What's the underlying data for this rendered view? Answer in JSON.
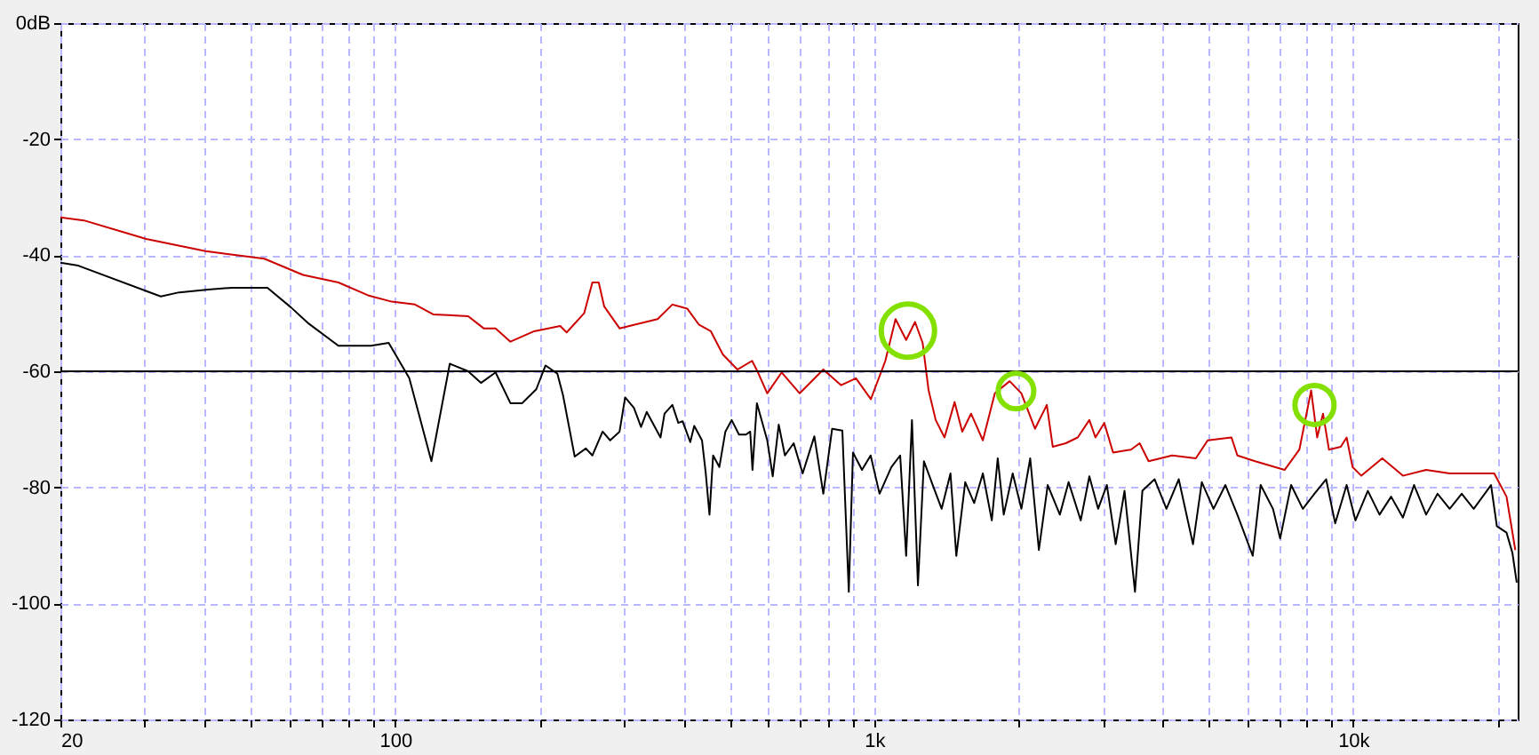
{
  "chart_data": {
    "type": "line",
    "log": "x",
    "grid": true,
    "line_style": "solid",
    "xlim": [
      20,
      22050
    ],
    "ylim": [
      -120,
      0
    ],
    "xticks": [
      20,
      {
        "value": 30,
        "label": null
      },
      {
        "value": 40,
        "label": null
      },
      {
        "value": 50,
        "label": null
      },
      {
        "value": 60,
        "label": null
      },
      {
        "value": 70,
        "label": null
      },
      {
        "value": 80,
        "label": null
      },
      {
        "value": 90,
        "label": null
      },
      100,
      {
        "value": 200,
        "label": null
      },
      {
        "value": 300,
        "label": null
      },
      {
        "value": 400,
        "label": null
      },
      {
        "value": 500,
        "label": null
      },
      {
        "value": 600,
        "label": null
      },
      {
        "value": 700,
        "label": null
      },
      {
        "value": 800,
        "label": null
      },
      {
        "value": 900,
        "label": null
      },
      {
        "value": 1000,
        "label": "1k"
      },
      {
        "value": 2000,
        "label": null
      },
      {
        "value": 3000,
        "label": null
      },
      {
        "value": 4000,
        "label": null
      },
      {
        "value": 5000,
        "label": null
      },
      {
        "value": 6000,
        "label": null
      },
      {
        "value": 7000,
        "label": null
      },
      {
        "value": 8000,
        "label": null
      },
      {
        "value": 9000,
        "label": null
      },
      {
        "value": 10000,
        "label": "10k"
      },
      {
        "value": 20000,
        "label": null
      }
    ],
    "yticks": [
      {
        "value": 0,
        "label": "0dB"
      },
      -20,
      -40,
      -60,
      -80,
      -100,
      -120
    ],
    "ref_lines": [
      {
        "axis": "y",
        "value": -60,
        "color": "#000000"
      }
    ],
    "series": [
      {
        "color": "#cc0000",
        "x": [
          20,
          22.4,
          30.2,
          40.2,
          53.3,
          64.2,
          76.1,
          87.7,
          98.3,
          110,
          120,
          142,
          153,
          162,
          174,
          195,
          221,
          228,
          248,
          258,
          266,
          273,
          294,
          315,
          353,
          379,
          407,
          431,
          456,
          483,
          518,
          556,
          572,
          598,
          641,
          699,
          783,
          853,
          916,
          984,
          1055,
          1108,
          1166,
          1217,
          1262,
          1299,
          1344,
          1402,
          1472,
          1527,
          1593,
          1686,
          1786,
          1918,
          2029,
          2166,
          2293,
          2359,
          2512,
          2660,
          2813,
          2897,
          3022,
          3153,
          3436,
          3583,
          3740,
          4190,
          4693,
          4969,
          5571,
          5730,
          6240,
          7190,
          7720,
          8170,
          8410,
          8650,
          8900,
          9420,
          9690,
          9970,
          10400,
          11500,
          12700,
          14200,
          15900,
          17900,
          19700,
          20900,
          21800
        ],
        "values": [
          -33.5,
          -34,
          -37.2,
          -39.3,
          -40.6,
          -43.4,
          -44.7,
          -46.9,
          -48,
          -48.5,
          -50.2,
          -50.5,
          -52.6,
          -52.6,
          -54.9,
          -53.1,
          -52.2,
          -53.3,
          -50,
          -44.7,
          -44.7,
          -48.8,
          -52.6,
          -52,
          -51,
          -48.5,
          -49.2,
          -52,
          -53.1,
          -57.1,
          -59.7,
          -58.2,
          -60.2,
          -63.8,
          -60.2,
          -63.8,
          -59.7,
          -62.4,
          -61.2,
          -64.8,
          -58.2,
          -51,
          -54.6,
          -51.5,
          -55.1,
          -63.3,
          -68.4,
          -71.4,
          -65.3,
          -70.4,
          -67.3,
          -71.9,
          -63.8,
          -61.7,
          -63.8,
          -69.9,
          -65.8,
          -73,
          -72.4,
          -71.4,
          -68.4,
          -71.4,
          -68.9,
          -74,
          -73.5,
          -72.4,
          -75.5,
          -74.5,
          -75,
          -71.9,
          -71.4,
          -74.5,
          -75.5,
          -77,
          -73.5,
          -63.3,
          -71.4,
          -67.3,
          -73.5,
          -73,
          -71.4,
          -76.5,
          -78,
          -75,
          -78,
          -77,
          -77.6,
          -77.6,
          -77.6,
          -81.6,
          -90.8
        ]
      },
      {
        "color": "#000000",
        "x": [
          20,
          21.8,
          32.4,
          35.4,
          40.7,
          45.6,
          54.1,
          60.6,
          66,
          76.1,
          89,
          96.9,
          107,
          119,
          130,
          142,
          151,
          162,
          174,
          184,
          197,
          206,
          218,
          224,
          237,
          250,
          258,
          271,
          281,
          294,
          302,
          315,
          326,
          335,
          358,
          365,
          379,
          390,
          398,
          413,
          421,
          437,
          445,
          453,
          461,
          475,
          489,
          504,
          522,
          540,
          551,
          557,
          569,
          598,
          614,
          632,
          651,
          679,
          709,
          750,
          783,
          817,
          858,
          885,
          903,
          943,
          983,
          1026,
          1086,
          1133,
          1166,
          1199,
          1234,
          1270,
          1325,
          1383,
          1443,
          1484,
          1549,
          1617,
          1686,
          1760,
          1811,
          1864,
          1946,
          2029,
          2117,
          2207,
          2303,
          2441,
          2546,
          2699,
          2813,
          2934,
          3060,
          3193,
          3331,
          3503,
          3630,
          3850,
          4075,
          4323,
          4630,
          4830,
          5110,
          5410,
          5730,
          6170,
          6410,
          6800,
          7040,
          7420,
          7850,
          8300,
          8780,
          9170,
          9690,
          10110,
          10730,
          11350,
          12000,
          12700,
          13400,
          14200,
          15000,
          15900,
          16850,
          17850,
          19400,
          19950,
          20900,
          21500,
          21950
        ],
        "values": [
          -41.3,
          -41.8,
          -47.1,
          -46.4,
          -45.9,
          -45.6,
          -45.6,
          -49,
          -51.8,
          -55.6,
          -55.6,
          -55.1,
          -61.2,
          -75.5,
          -58.7,
          -60,
          -62,
          -60.2,
          -65.5,
          -65.5,
          -63.1,
          -59,
          -60.4,
          -64.1,
          -74.7,
          -73.3,
          -74.5,
          -70.4,
          -71.9,
          -70.4,
          -64.5,
          -66.3,
          -69.6,
          -67,
          -71.4,
          -67.3,
          -65.8,
          -68.9,
          -68.6,
          -72.2,
          -69.4,
          -71.9,
          -77.6,
          -84.7,
          -74.5,
          -76.5,
          -70.4,
          -68.4,
          -70.9,
          -70.9,
          -70.4,
          -77,
          -65.5,
          -71.9,
          -78.1,
          -69.2,
          -74.5,
          -72.4,
          -77.6,
          -71.2,
          -81.1,
          -69.9,
          -70.2,
          -98,
          -74,
          -77,
          -74.5,
          -81.1,
          -76.5,
          -74.5,
          -91.8,
          -68.4,
          -96.9,
          -75.5,
          -79.6,
          -83.7,
          -77.6,
          -91.8,
          -79.1,
          -82.7,
          -77.6,
          -85.7,
          -75,
          -84.7,
          -77.6,
          -83.7,
          -75,
          -90.8,
          -79.6,
          -84.7,
          -79.1,
          -85.7,
          -78.1,
          -83.7,
          -79.6,
          -89.8,
          -80.6,
          -98,
          -80.6,
          -78.6,
          -83.7,
          -78.6,
          -89.8,
          -79.1,
          -83.7,
          -79.6,
          -84.7,
          -91.8,
          -79.6,
          -83.7,
          -88.8,
          -79.6,
          -83.7,
          -81.1,
          -78.6,
          -86.2,
          -79.6,
          -85.7,
          -80.6,
          -84.7,
          -81.6,
          -85.2,
          -79.6,
          -84.7,
          -81.1,
          -83.7,
          -81.1,
          -83.7,
          -79.6,
          -86.7,
          -87.8,
          -91.3,
          -96.4
        ]
      }
    ]
  }
}
